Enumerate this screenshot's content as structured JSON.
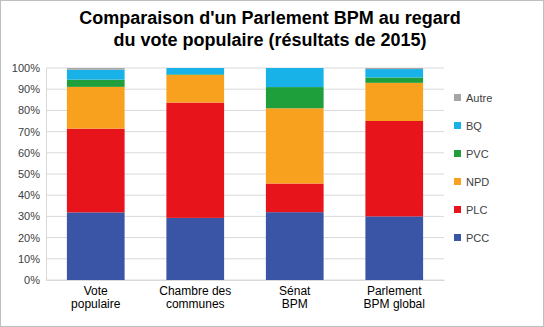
{
  "chart_data": {
    "type": "bar",
    "stacked": true,
    "title": "Comparaison d'un Parlement BPM au regard\ndu vote populaire (résultats de 2015)",
    "categories": [
      "Vote\npopulaire",
      "Chambre des\ncommunes",
      "Sénat\nBPM",
      "Parlement\nBPM global"
    ],
    "series": [
      {
        "name": "PCC",
        "color": "#3b55a6",
        "values": [
          31.9,
          29.3,
          32,
          30
        ]
      },
      {
        "name": "PLC",
        "color": "#e8141c",
        "values": [
          39.5,
          54.4,
          13.5,
          45
        ]
      },
      {
        "name": "NPD",
        "color": "#f8a11f",
        "values": [
          19.7,
          13.0,
          35.5,
          18
        ]
      },
      {
        "name": "PVC",
        "color": "#1f9e3c",
        "values": [
          3.4,
          0.3,
          10,
          2.5
        ]
      },
      {
        "name": "BQ",
        "color": "#19b2e8",
        "values": [
          4.7,
          3.0,
          9,
          4
        ]
      },
      {
        "name": "Autre",
        "color": "#a6a6a6",
        "values": [
          0.8,
          0,
          0,
          0.5
        ]
      }
    ],
    "ylim": [
      0,
      100
    ],
    "yticks": [
      {
        "value": 0,
        "label": "0%"
      },
      {
        "value": 10,
        "label": "10%"
      },
      {
        "value": 20,
        "label": "20%"
      },
      {
        "value": 30,
        "label": "30%"
      },
      {
        "value": 40,
        "label": "40%"
      },
      {
        "value": 50,
        "label": "50%"
      },
      {
        "value": 60,
        "label": "60%"
      },
      {
        "value": 70,
        "label": "70%"
      },
      {
        "value": 80,
        "label": "80%"
      },
      {
        "value": 90,
        "label": "90%"
      },
      {
        "value": 100,
        "label": "100%"
      }
    ],
    "grid": true,
    "legend": "right"
  }
}
